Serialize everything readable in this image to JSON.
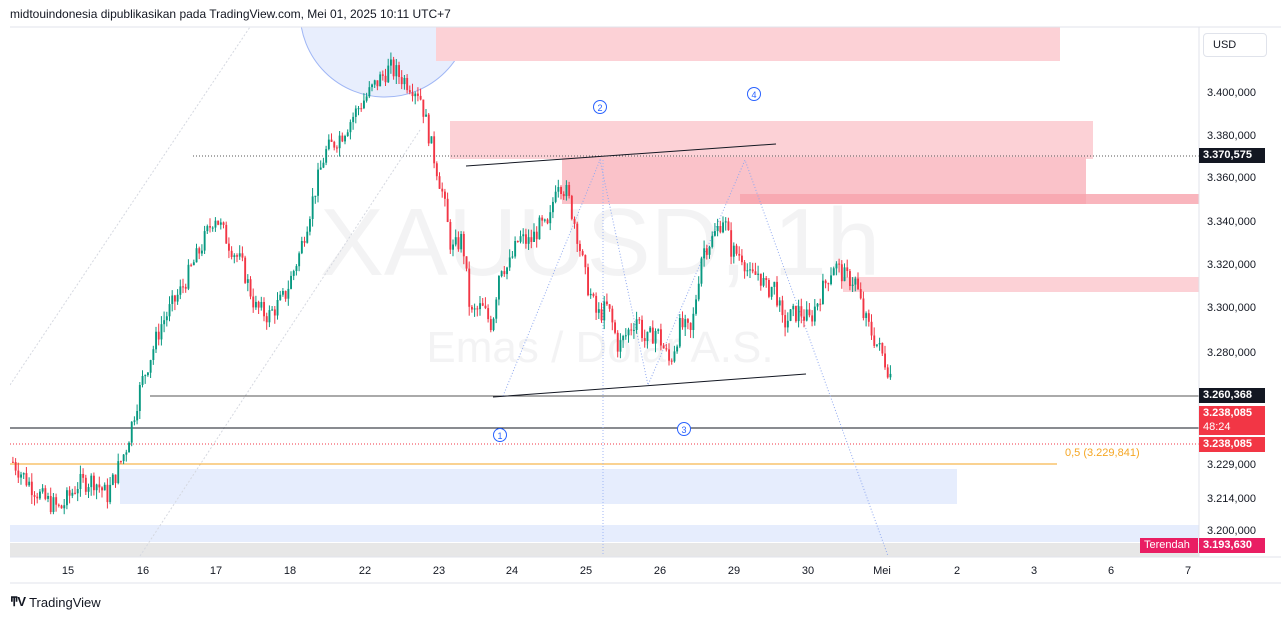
{
  "header": {
    "title": "midtouindonesia dipublikasikan pada TradingView.com, Mei 01, 2025 10:11 UTC+7"
  },
  "watermark": {
    "symbol": "XAUUSD, 1h",
    "name": "Emas / Dolar A.S."
  },
  "currency_button": "USD",
  "footer": {
    "brand": "TradingView"
  },
  "colors": {
    "up": "#089981",
    "down": "#f23645",
    "zone": "#f8b9c0",
    "support_zone": "#dde6fc",
    "fib": "#f5a623",
    "wave_label": "#2962ff"
  },
  "price_labels": {
    "hline_top": "3.370,575",
    "hline_mid": "3.260,368",
    "current": "3.238,085",
    "countdown": "48:24",
    "current2": "3.238,085",
    "low_tag": "Terendah",
    "low_value": "3.193,630"
  },
  "fib_label": "0,5 (3.229,841)",
  "waves": [
    "1",
    "2",
    "3",
    "4"
  ],
  "chart_data": {
    "type": "candlestick",
    "symbol": "XAUUSD",
    "timeframe": "1h",
    "y_ticks": [
      "3.400,000",
      "3.380,000",
      "3.360,000",
      "3.340,000",
      "3.320,000",
      "3.300,000",
      "3.280,000",
      "3.229,000",
      "3.214,000",
      "3.200,000"
    ],
    "y_tick_values": [
      3400,
      3380,
      3360,
      3340,
      3320,
      3300,
      3280,
      3229,
      3214,
      3200
    ],
    "x_ticks": [
      "15",
      "16",
      "17",
      "18",
      "22",
      "23",
      "24",
      "25",
      "26",
      "29",
      "30",
      "Mei",
      "2",
      "3",
      "6",
      "7"
    ],
    "horizontal_levels": [
      3370.575,
      3260.368,
      3238.085,
      3229.841
    ],
    "low": 3193.63,
    "path": [
      [
        0,
        3230
      ],
      [
        10,
        3222
      ],
      [
        22,
        3214
      ],
      [
        35,
        3209
      ],
      [
        48,
        3220
      ],
      [
        60,
        3222
      ],
      [
        70,
        3215
      ],
      [
        84,
        3236
      ],
      [
        95,
        3265
      ],
      [
        110,
        3292
      ],
      [
        125,
        3308
      ],
      [
        140,
        3328
      ],
      [
        150,
        3343
      ],
      [
        160,
        3330
      ],
      [
        170,
        3320
      ],
      [
        180,
        3300
      ],
      [
        190,
        3296
      ],
      [
        202,
        3305
      ],
      [
        213,
        3325
      ],
      [
        222,
        3348
      ],
      [
        232,
        3372
      ],
      [
        245,
        3381
      ],
      [
        258,
        3394
      ],
      [
        270,
        3404
      ],
      [
        280,
        3411
      ],
      [
        292,
        3405
      ],
      [
        302,
        3400
      ],
      [
        312,
        3372
      ],
      [
        320,
        3350
      ],
      [
        326,
        3326
      ],
      [
        334,
        3332
      ],
      [
        340,
        3296
      ],
      [
        348,
        3300
      ],
      [
        356,
        3292
      ],
      [
        362,
        3320
      ],
      [
        368,
        3318
      ],
      [
        376,
        3332
      ],
      [
        384,
        3330
      ],
      [
        392,
        3338
      ],
      [
        398,
        3336
      ],
      [
        404,
        3360
      ],
      [
        412,
        3352
      ],
      [
        418,
        3338
      ],
      [
        426,
        3312
      ],
      [
        434,
        3296
      ],
      [
        442,
        3300
      ],
      [
        450,
        3282
      ],
      [
        458,
        3290
      ],
      [
        464,
        3296
      ],
      [
        470,
        3284
      ],
      [
        478,
        3290
      ],
      [
        488,
        3275
      ],
      [
        496,
        3292
      ],
      [
        504,
        3288
      ],
      [
        512,
        3326
      ],
      [
        520,
        3332
      ],
      [
        528,
        3342
      ],
      [
        534,
        3326
      ],
      [
        542,
        3324
      ],
      [
        548,
        3313
      ],
      [
        554,
        3316
      ],
      [
        560,
        3308
      ],
      [
        566,
        3310
      ],
      [
        572,
        3292
      ],
      [
        578,
        3296
      ],
      [
        584,
        3298
      ],
      [
        592,
        3294
      ],
      [
        600,
        3306
      ],
      [
        610,
        3320
      ],
      [
        618,
        3314
      ],
      [
        626,
        3312
      ],
      [
        632,
        3296
      ],
      [
        640,
        3286
      ],
      [
        648,
        3276
      ],
      [
        652,
        3270
      ]
    ]
  }
}
